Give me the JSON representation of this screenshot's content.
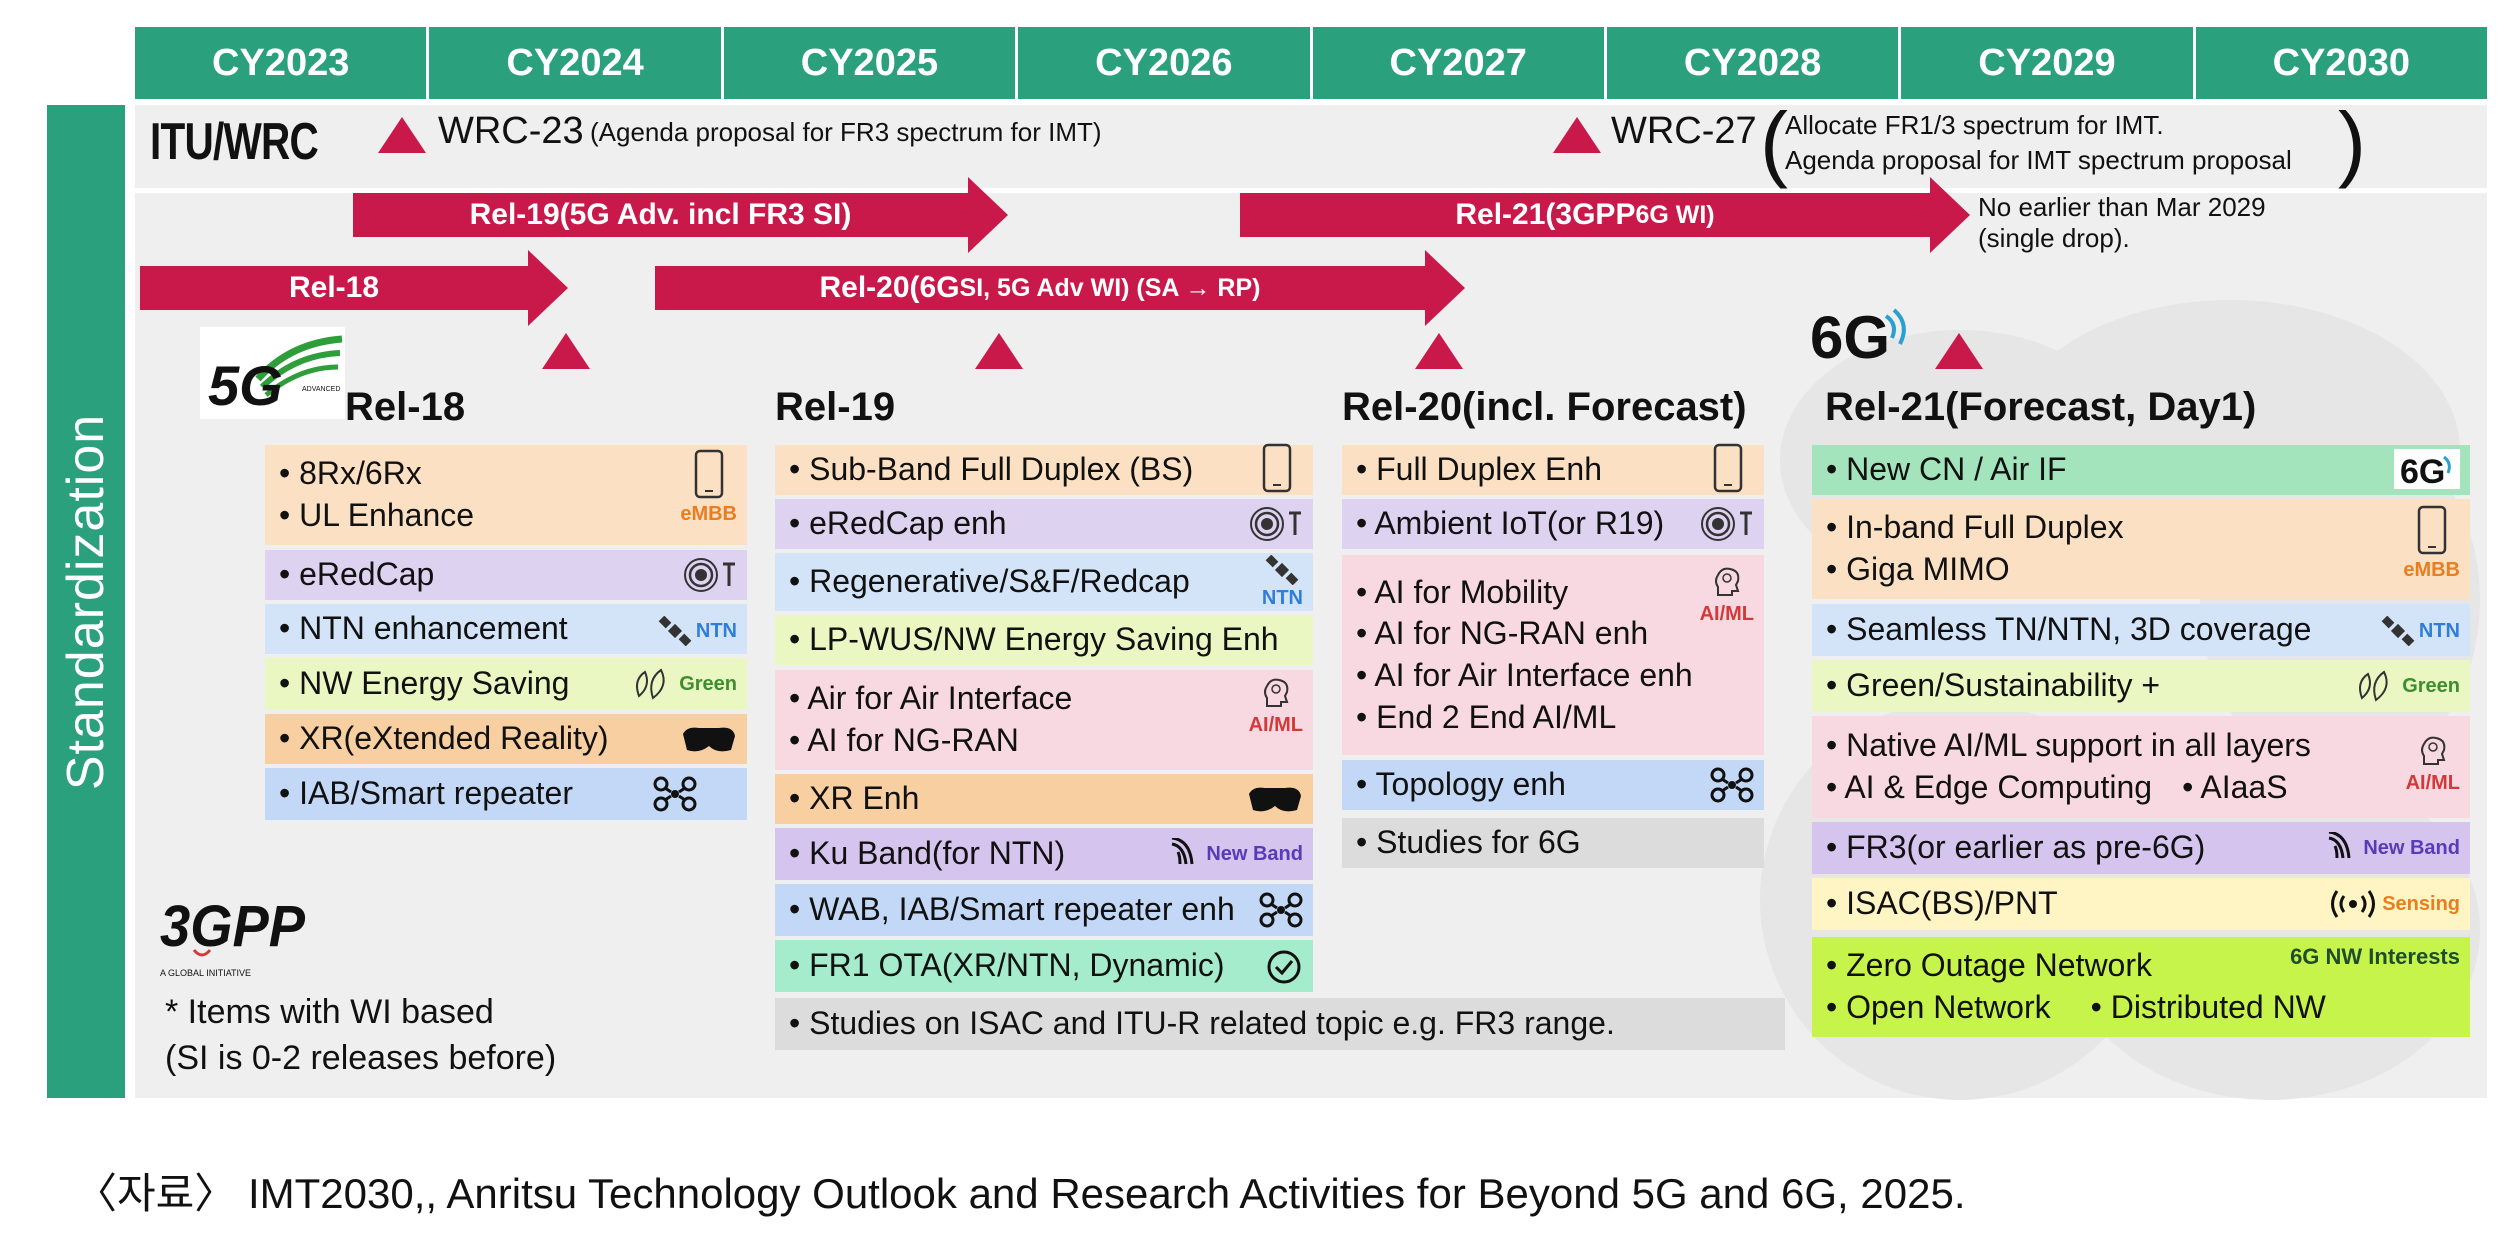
{
  "years": [
    "CY2023",
    "CY2024",
    "CY2025",
    "CY2026",
    "CY2027",
    "CY2028",
    "CY2029",
    "CY2030"
  ],
  "sidebar_label": "Standardization",
  "itu": {
    "label": "ITU/WRC",
    "wrc23_main": "WRC-23",
    "wrc23_sub": "(Agenda proposal for FR3 spectrum for IMT)",
    "wrc27_main": "WRC-27",
    "wrc27_sub1": "Allocate FR1/3 spectrum for IMT.",
    "wrc27_sub2": "Agenda proposal for IMT spectrum proposal"
  },
  "arrows": {
    "rel19": "Rel-19(5G Adv. incl FR3 SI)",
    "rel21_a": "Rel-21(3GPP ",
    "rel21_b": "6G WI)",
    "rel18": "Rel-18",
    "rel20_a": "Rel-20(6G ",
    "rel20_b": "SI, 5G Adv WI) (SA → RP)",
    "rel21_note1": "No earlier than Mar 2029",
    "rel21_note2": "(single drop)."
  },
  "logos": {
    "g5_text": "5G",
    "g5_sub": "ADVANCED",
    "g6_text": "6G",
    "g3_text": "3GPP",
    "g3_sub": "A GLOBAL INITIATIVE"
  },
  "columns": {
    "rel18": {
      "title": "Rel-18",
      "items": [
        {
          "lines": [
            "8Rx/6Rx",
            "UL Enhance"
          ],
          "tag": "eMBB",
          "icon": "phone-icon"
        },
        {
          "lines": [
            "eRedCap"
          ],
          "tag": "",
          "icon": "iot-icon"
        },
        {
          "lines": [
            "NTN enhancement"
          ],
          "tag": "NTN",
          "icon": "satellite-icon"
        },
        {
          "lines": [
            "NW Energy Saving"
          ],
          "tag": "Green",
          "icon": "leaf-icon"
        },
        {
          "lines": [
            "XR(eXtended Reality)"
          ],
          "tag": "",
          "icon": "vr-headset-icon"
        },
        {
          "lines": [
            "IAB/Smart repeater"
          ],
          "tag": "",
          "icon": "network-node-icon"
        }
      ]
    },
    "rel19": {
      "title": "Rel-19",
      "items": [
        {
          "lines": [
            "Sub-Band Full Duplex (BS)"
          ],
          "tag": "",
          "icon": "phone-icon"
        },
        {
          "lines": [
            "eRedCap enh"
          ],
          "tag": "",
          "icon": "iot-icon"
        },
        {
          "lines": [
            "Regenerative/S&F/Redcap"
          ],
          "tag": "NTN",
          "icon": "satellite-icon"
        },
        {
          "lines": [
            "LP-WUS/NW Energy Saving Enh"
          ],
          "tag": "",
          "icon": ""
        },
        {
          "lines": [
            "Air for Air Interface",
            "AI for NG-RAN"
          ],
          "tag": "AI/ML",
          "icon": "brain-icon"
        },
        {
          "lines": [
            "XR Enh"
          ],
          "tag": "",
          "icon": "vr-headset-icon"
        },
        {
          "lines": [
            "Ku Band(for NTN)"
          ],
          "tag": "New Band",
          "icon": "wave-icon"
        },
        {
          "lines": [
            "WAB, IAB/Smart repeater enh"
          ],
          "tag": "",
          "icon": "network-node-icon"
        },
        {
          "lines": [
            "FR1 OTA(XR/NTN, Dynamic)"
          ],
          "tag": "",
          "icon": "check-icon"
        },
        {
          "lines": [
            "Studies on ISAC and ITU-R related topic e.g. FR3 range."
          ],
          "tag": "",
          "icon": ""
        }
      ]
    },
    "rel20": {
      "title": "Rel-20(incl. Forecast)",
      "items": [
        {
          "lines": [
            "Full Duplex Enh"
          ],
          "tag": "",
          "icon": "phone-icon"
        },
        {
          "lines": [
            "Ambient IoT(or R19)"
          ],
          "tag": "",
          "icon": "iot-icon"
        },
        {
          "lines": [
            "AI for Mobility",
            "AI for NG-RAN enh",
            "AI for Air Interface enh",
            "End 2 End AI/ML"
          ],
          "tag": "AI/ML",
          "icon": "brain-icon"
        },
        {
          "lines": [
            "Topology enh"
          ],
          "tag": "",
          "icon": "network-node-icon"
        },
        {
          "lines": [
            "Studies for 6G"
          ],
          "tag": "",
          "icon": ""
        }
      ]
    },
    "rel21": {
      "title": "Rel-21(Forecast, Day1)",
      "items": [
        {
          "lines": [
            "New CN / Air IF"
          ],
          "tag": "",
          "icon": "6g-logo-icon"
        },
        {
          "lines": [
            "In-band Full Duplex",
            "Giga MIMO"
          ],
          "tag": "eMBB",
          "icon": "phone-icon"
        },
        {
          "lines": [
            "Seamless TN/NTN, 3D coverage"
          ],
          "tag": "NTN",
          "icon": "satellite-icon"
        },
        {
          "lines": [
            "Green/Sustainability +"
          ],
          "tag": "Green",
          "icon": "leaf-icon"
        },
        {
          "lines": [
            "Native AI/ML support in all layers",
            "AI & Edge Computing"
          ],
          "extra": "• AIaaS",
          "tag": "AI/ML",
          "icon": "brain-icon"
        },
        {
          "lines": [
            "FR3(or earlier as pre-6G)"
          ],
          "tag": "New Band",
          "icon": "wave-icon"
        },
        {
          "lines": [
            "ISAC(BS)/PNT"
          ],
          "tag": "Sensing",
          "icon": "sensing-icon"
        },
        {
          "lines": [
            "Zero Outage Network",
            "Open Network"
          ],
          "extra": "• Distributed NW",
          "tag": "6G NW Interests",
          "icon": ""
        }
      ]
    }
  },
  "footnote": {
    "line1": "* Items with WI based",
    "line2": "(SI is 0-2 releases before)"
  },
  "source": "〈자료〉 IMT2030,, Anritsu Technology Outlook and Research Activities for Beyond 5G and 6G, 2025.",
  "colors": {
    "green_header": "#2aa07c",
    "arrow_red": "#c8194a",
    "tag_orange": "#e87e1e",
    "tag_blue": "#2f7ed8",
    "tag_green": "#3e8e2e",
    "tag_red": "#d23a3a",
    "tag_purple": "#5b3ab8"
  }
}
